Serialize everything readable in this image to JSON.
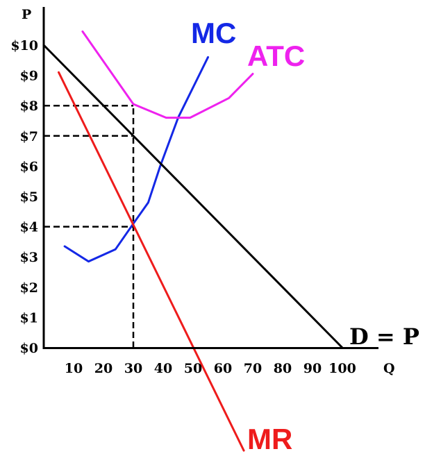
{
  "chart_data": {
    "type": "line",
    "xlabel": "Q",
    "ylabel": "P",
    "xlim": [
      0,
      110
    ],
    "ylim": [
      0,
      10.7
    ],
    "x_ticks": [
      "10",
      "20",
      "30",
      "40",
      "50",
      "60",
      "70",
      "80",
      "90",
      "100"
    ],
    "y_ticks": [
      "$0",
      "$1",
      "$2",
      "$3",
      "$4",
      "$5",
      "$6",
      "$7",
      "$8",
      "$9",
      "$10"
    ],
    "series": [
      {
        "name": "MC",
        "color": "#1428e6",
        "points": [
          [
            7,
            3.35
          ],
          [
            15,
            2.85
          ],
          [
            24,
            3.25
          ],
          [
            30,
            4.1
          ],
          [
            35,
            4.8
          ],
          [
            39,
            6.0
          ],
          [
            45,
            7.6
          ],
          [
            50,
            8.6
          ],
          [
            55,
            9.6
          ]
        ]
      },
      {
        "name": "ATC",
        "color": "#ee22ee",
        "points": [
          [
            13,
            10.45
          ],
          [
            30,
            8.05
          ],
          [
            41,
            7.6
          ],
          [
            49,
            7.6
          ],
          [
            62,
            8.25
          ],
          [
            70,
            9.05
          ]
        ]
      },
      {
        "name": "MR",
        "color": "#ee1c1c",
        "points": [
          [
            5,
            9.1
          ],
          [
            67,
            -3.4
          ]
        ]
      },
      {
        "name": "D = P",
        "color": "#000000",
        "points": [
          [
            0,
            10
          ],
          [
            100,
            0
          ]
        ]
      }
    ],
    "reference_lines": [
      {
        "from": [
          0,
          8
        ],
        "to": [
          30,
          8
        ]
      },
      {
        "from": [
          0,
          7
        ],
        "to": [
          30,
          7
        ]
      },
      {
        "from": [
          0,
          4
        ],
        "to": [
          30,
          4
        ]
      },
      {
        "from": [
          30,
          0
        ],
        "to": [
          30,
          8
        ]
      }
    ],
    "annotations": [
      "MC",
      "ATC",
      "MR",
      "D = P"
    ]
  }
}
